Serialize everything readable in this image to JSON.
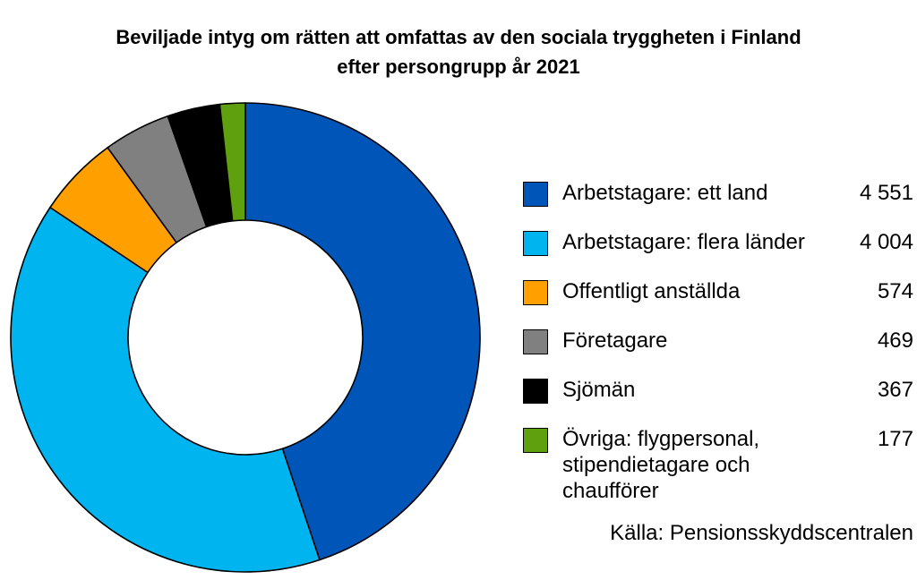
{
  "chart_data": {
    "type": "pie",
    "subtype": "donut",
    "title_lines": [
      "Beviljade intyg om rätten att omfattas av den sociala tryggheten i Finland",
      "efter persongrupp år 2021"
    ],
    "legend_placement": "right",
    "slices": [
      {
        "label_lines": [
          "Arbetstagare: ett land"
        ],
        "value": 4551,
        "value_label": "4 551",
        "color": "#0055b8"
      },
      {
        "label_lines": [
          "Arbetstagare: flera länder"
        ],
        "value": 4004,
        "value_label": "4 004",
        "color": "#00b4f0"
      },
      {
        "label_lines": [
          "Offentligt anställda"
        ],
        "value": 574,
        "value_label": "574",
        "color": "#ffa000"
      },
      {
        "label_lines": [
          "Företagare"
        ],
        "value": 469,
        "value_label": "469",
        "color": "#808080"
      },
      {
        "label_lines": [
          "Sjömän"
        ],
        "value": 367,
        "value_label": "367",
        "color": "#000000"
      },
      {
        "label_lines": [
          "Övriga: flygpersonal,",
          "stipendietagare och",
          "chaufförer"
        ],
        "value": 177,
        "value_label": "177",
        "color": "#5fa00f"
      }
    ],
    "source": "Källa: Pensionsskyddscentralen"
  }
}
